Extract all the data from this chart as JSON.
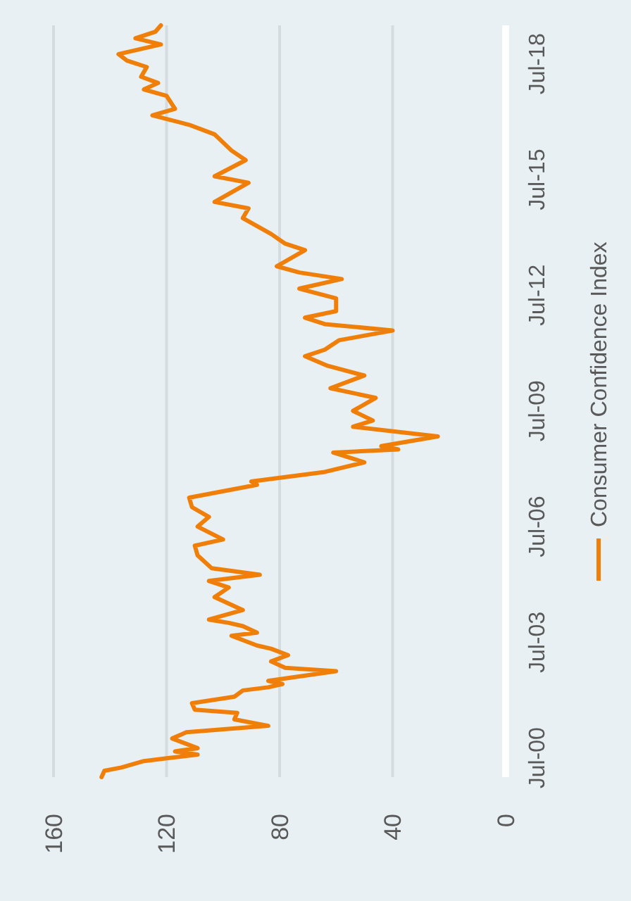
{
  "chart_data": {
    "type": "line",
    "orientation": "horizontal",
    "ylim": [
      "2000-01",
      "2019-07"
    ],
    "yticks": [
      {
        "value": "2000-07",
        "label": "Jul-00"
      },
      {
        "value": "2003-07",
        "label": "Jul-03"
      },
      {
        "value": "2006-07",
        "label": "Jul-06"
      },
      {
        "value": "2009-07",
        "label": "Jul-09"
      },
      {
        "value": "2012-07",
        "label": "Jul-12"
      },
      {
        "value": "2015-07",
        "label": "Jul-15"
      },
      {
        "value": "2018-07",
        "label": "Jul-18"
      }
    ],
    "xlim": [
      160,
      0
    ],
    "xticks": [
      160,
      120,
      80,
      40,
      0
    ],
    "grid": "x",
    "legend": "right",
    "marker": "none",
    "line_style": "solid",
    "x": [
      "2000-01",
      "2000-03",
      "2000-04",
      "2000-06",
      "2000-07",
      "2000-08",
      "2000-09",
      "2000-10",
      "2001-01",
      "2001-03",
      "2001-05",
      "2001-07",
      "2001-09",
      "2001-10",
      "2001-12",
      "2002-02",
      "2002-04",
      "2002-05",
      "2002-06",
      "2002-07",
      "2002-10",
      "2002-11",
      "2003-01",
      "2003-03",
      "2003-05",
      "2003-06",
      "2003-09",
      "2003-10",
      "2003-12",
      "2004-01",
      "2004-02",
      "2004-05",
      "2004-09",
      "2004-12",
      "2005-02",
      "2005-04",
      "2005-06",
      "2005-10",
      "2006-01",
      "2006-03",
      "2006-07",
      "2006-10",
      "2007-01",
      "2007-04",
      "2007-08",
      "2007-09",
      "2007-12",
      "2008-03",
      "2008-06",
      "2008-07",
      "2008-08",
      "2008-11",
      "2009-02",
      "2009-04",
      "2009-07",
      "2009-11",
      "2010-02",
      "2010-06",
      "2010-09",
      "2010-12",
      "2011-02",
      "2011-05",
      "2011-08",
      "2011-10",
      "2011-12",
      "2012-02",
      "2012-06",
      "2012-09",
      "2012-12",
      "2013-02",
      "2013-04",
      "2013-09",
      "2013-11",
      "2014-02",
      "2014-07",
      "2014-10",
      "2014-12",
      "2015-06",
      "2015-08",
      "2016-01",
      "2016-04",
      "2016-09",
      "2016-12",
      "2017-03",
      "2017-05",
      "2017-09",
      "2017-11",
      "2018-01",
      "2018-03",
      "2018-06",
      "2018-08",
      "2018-10",
      "2019-01",
      "2019-03",
      "2019-05",
      "2019-07"
    ],
    "series": [
      {
        "name": "Consumer Confidence Index",
        "color": "#f07f09",
        "values": [
          143,
          142,
          136,
          128,
          119,
          109,
          117,
          109,
          118,
          113,
          84,
          96,
          95,
          110,
          111,
          96,
          93,
          84,
          79,
          84,
          60,
          78,
          83,
          77,
          83,
          88,
          97,
          88,
          93,
          98,
          105,
          93,
          103,
          98,
          105,
          87,
          104,
          109,
          110,
          100,
          109,
          105,
          111,
          112,
          88,
          90,
          64,
          50,
          61,
          38,
          44,
          24,
          54,
          47,
          54,
          46,
          62,
          50,
          63,
          71,
          64,
          59,
          40,
          64,
          71,
          60,
          60,
          73,
          58,
          73,
          81,
          71,
          78,
          83,
          93,
          91,
          103,
          91,
          103,
          92,
          97,
          103,
          112,
          125,
          117,
          120,
          128,
          123,
          129,
          127,
          134,
          137,
          122,
          131,
          124,
          122
        ]
      }
    ]
  }
}
